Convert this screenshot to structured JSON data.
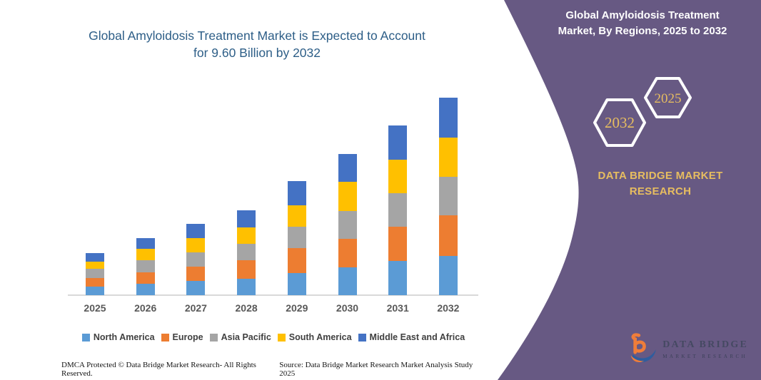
{
  "left_panel": {
    "title_line1": "Global Amyloidosis Treatment Market is Expected to Account",
    "title_line2": "for 9.60 Billion by 2032",
    "footer_left": "DMCA Protected © Data Bridge Market Research- All Rights Reserved.",
    "footer_right": "Source: Data Bridge Market Research Market Analysis Study 2025"
  },
  "right_panel": {
    "title_line1": "Global Amyloidosis Treatment",
    "title_line2": "Market, By Regions, 2025 to 2032",
    "hexagon_back_label": "2032",
    "hexagon_front_label": "2025",
    "brand_line1": "DATA BRIDGE MARKET",
    "brand_line2": "RESEARCH",
    "logo_name": "DATA BRIDGE",
    "logo_sub": "MARKET RESEARCH"
  },
  "colors": {
    "panel_purple": "#675983",
    "title_blue": "#2d5e87",
    "gold": "#e7bd60",
    "axis_gray": "#d9d9d9",
    "label_gray": "#595959",
    "logo_orange": "#ef7d3a",
    "logo_blue": "#2f5d9e"
  },
  "chart_data": {
    "type": "bar",
    "stacked": true,
    "title": "Global Amyloidosis Treatment Market is Expected to Account for 9.60 Billion by 2032",
    "categories": [
      "2025",
      "2026",
      "2027",
      "2028",
      "2029",
      "2030",
      "2031",
      "2032"
    ],
    "series": [
      {
        "name": "North America",
        "color": "#5B9BD5",
        "values": [
          0.41,
          0.57,
          0.69,
          0.8,
          1.07,
          1.35,
          1.66,
          1.92
        ]
      },
      {
        "name": "Europe",
        "color": "#ED7D31",
        "values": [
          0.42,
          0.55,
          0.69,
          0.9,
          1.21,
          1.38,
          1.66,
          1.97
        ]
      },
      {
        "name": "Asia Pacific",
        "color": "#A5A5A5",
        "values": [
          0.44,
          0.58,
          0.69,
          0.78,
          1.04,
          1.35,
          1.62,
          1.86
        ]
      },
      {
        "name": "South America",
        "color": "#FFC000",
        "values": [
          0.37,
          0.55,
          0.69,
          0.83,
          1.04,
          1.42,
          1.66,
          1.91
        ]
      },
      {
        "name": "Middle East and Africa",
        "color": "#4472C4",
        "values": [
          0.42,
          0.51,
          0.69,
          0.8,
          1.17,
          1.38,
          1.66,
          1.94
        ]
      }
    ],
    "totals": [
      2.06,
      2.76,
      3.45,
      4.11,
      5.53,
      6.88,
      8.26,
      9.6
    ],
    "value_unit": "Billion",
    "xlabel": "",
    "ylabel": "",
    "ylim": [
      0,
      9.6
    ],
    "gridlines": false,
    "y_axis_visible": false,
    "legend_position": "bottom"
  }
}
